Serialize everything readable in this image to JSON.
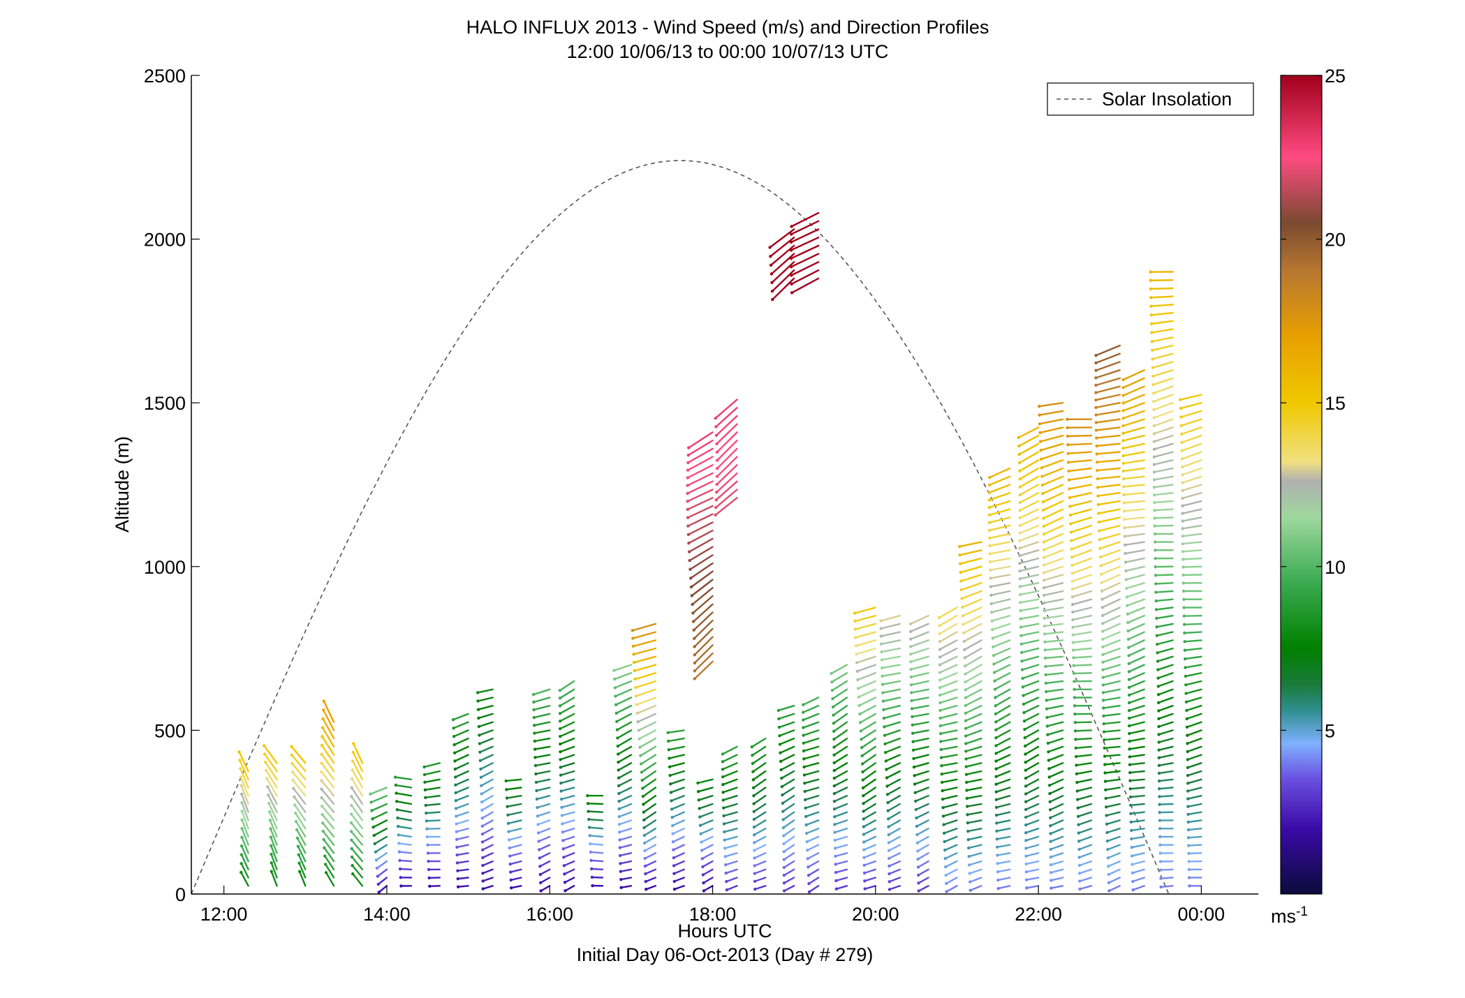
{
  "chart_data": {
    "type": "quiver",
    "title": "HALO INFLUX 2013 - Wind Speed (m/s) and Direction Profiles",
    "subtitle": "12:00 10/06/13 to 00:00 10/07/13  UTC",
    "xlabel": "Hours UTC",
    "xlabel2": "Initial Day 06-Oct-2013 (Day # 279)",
    "ylabel": "Altitude (m)",
    "xlim": [
      11.6,
      24.7
    ],
    "ylim": [
      0,
      2500
    ],
    "x_ticks": [
      12,
      14,
      16,
      18,
      20,
      22,
      24
    ],
    "x_tick_labels": [
      "12:00",
      "14:00",
      "16:00",
      "18:00",
      "20:00",
      "22:00",
      "00:00"
    ],
    "y_ticks": [
      0,
      500,
      1000,
      1500,
      2000,
      2500
    ],
    "y_tick_labels": [
      "0",
      "500",
      "1000",
      "1500",
      "2000",
      "2500"
    ],
    "colorbar": {
      "min": 0,
      "max": 25,
      "ticks": [
        5,
        10,
        15,
        20,
        25
      ],
      "tick_labels": [
        "5",
        "10",
        "15",
        "20",
        "25"
      ],
      "unit": "ms",
      "unit_exp": "-1",
      "stops": [
        {
          "v": 0,
          "c": "#0b0b3b"
        },
        {
          "v": 2,
          "c": "#3b0aa8"
        },
        {
          "v": 3.5,
          "c": "#6a4fe0"
        },
        {
          "v": 4.6,
          "c": "#7fb0ff"
        },
        {
          "v": 5.6,
          "c": "#2f8f8f"
        },
        {
          "v": 6.4,
          "c": "#1a7a3a"
        },
        {
          "v": 7.5,
          "c": "#008000"
        },
        {
          "v": 9.5,
          "c": "#3aaa50"
        },
        {
          "v": 11.5,
          "c": "#9ed89e"
        },
        {
          "v": 12.6,
          "c": "#b0b0b0"
        },
        {
          "v": 13.2,
          "c": "#f0e080"
        },
        {
          "v": 15,
          "c": "#f0c800"
        },
        {
          "v": 17,
          "c": "#e8a000"
        },
        {
          "v": 19,
          "c": "#b87830"
        },
        {
          "v": 20.5,
          "c": "#7a4a30"
        },
        {
          "v": 22.5,
          "c": "#ff4b82"
        },
        {
          "v": 25,
          "c": "#a0001a"
        }
      ]
    },
    "solar_insolation": {
      "name": "Solar Insolation",
      "color": "#555555",
      "style": "dashed",
      "start_hour": 11.6,
      "end_hour": 23.6,
      "peak_hour": 17.6,
      "peak_altitude": 2240
    },
    "profiles": [
      {
        "t": 12.3,
        "h0": 25,
        "h1": 375,
        "dir": 330,
        "v0": 8,
        "v1": 15
      },
      {
        "t": 12.65,
        "h0": 25,
        "h1": 400,
        "dir": 330,
        "v0": 8,
        "v1": 15
      },
      {
        "t": 13.0,
        "h0": 25,
        "h1": 400,
        "dir": 330,
        "v0": 8,
        "v1": 15
      },
      {
        "t": 13.35,
        "h0": 25,
        "h1": 525,
        "dir": 330,
        "v0": 8,
        "v1": 17
      },
      {
        "t": 13.7,
        "h0": 25,
        "h1": 400,
        "dir": 330,
        "v0": 8,
        "v1": 15
      },
      {
        "t": 14.0,
        "h0": 25,
        "h1": 340,
        "dir": 240,
        "v0": 2,
        "v1": 11
      },
      {
        "t": 14.3,
        "h0": 25,
        "h1": 360,
        "dir": 270,
        "v0": 2,
        "v1": 9
      },
      {
        "t": 14.65,
        "h0": 25,
        "h1": 420,
        "dir": 260,
        "v0": 2,
        "v1": 9
      },
      {
        "t": 15.0,
        "h0": 25,
        "h1": 560,
        "dir": 255,
        "v0": 2,
        "v1": 9
      },
      {
        "t": 15.3,
        "h0": 25,
        "h1": 630,
        "dir": 250,
        "v0": 2,
        "v1": 8
      },
      {
        "t": 15.65,
        "h0": 25,
        "h1": 360,
        "dir": 265,
        "v0": 2,
        "v1": 8
      },
      {
        "t": 16.0,
        "h0": 25,
        "h1": 640,
        "dir": 250,
        "v0": 2,
        "v1": 10
      },
      {
        "t": 16.3,
        "h0": 25,
        "h1": 670,
        "dir": 245,
        "v0": 2,
        "v1": 10
      },
      {
        "t": 16.65,
        "h0": 25,
        "h1": 310,
        "dir": 265,
        "v0": 2,
        "v1": 8
      },
      {
        "t": 17.0,
        "h0": 25,
        "h1": 700,
        "dir": 250,
        "v0": 2,
        "v1": 11
      },
      {
        "t": 17.3,
        "h0": 25,
        "h1": 830,
        "dir": 245,
        "v0": 2,
        "v1": 18
      },
      {
        "t": 17.65,
        "h0": 25,
        "h1": 500,
        "dir": 255,
        "v0": 2,
        "v1": 9
      },
      {
        "t": 18.0,
        "h0": 25,
        "h1": 360,
        "dir": 250,
        "v0": 2,
        "v1": 8
      },
      {
        "t": 18.0,
        "h0": 710,
        "h1": 1410,
        "dir": 235,
        "v0": 19,
        "v1": 23
      },
      {
        "t": 18.3,
        "h0": 25,
        "h1": 450,
        "dir": 245,
        "v0": 3,
        "v1": 9
      },
      {
        "t": 18.3,
        "h0": 1210,
        "h1": 1520,
        "dir": 235,
        "v0": 22,
        "v1": 23
      },
      {
        "t": 18.65,
        "h0": 25,
        "h1": 490,
        "dir": 245,
        "v0": 3,
        "v1": 9
      },
      {
        "t": 19.0,
        "h0": 25,
        "h1": 580,
        "dir": 245,
        "v0": 3,
        "v1": 9
      },
      {
        "t": 19.0,
        "h0": 1880,
        "h1": 2050,
        "dir": 235,
        "v0": 25,
        "v1": 25
      },
      {
        "t": 19.3,
        "h0": 25,
        "h1": 620,
        "dir": 245,
        "v0": 3,
        "v1": 10
      },
      {
        "t": 19.3,
        "h0": 1880,
        "h1": 2080,
        "dir": 235,
        "v0": 25,
        "v1": 25
      },
      {
        "t": 19.65,
        "h0": 25,
        "h1": 720,
        "dir": 245,
        "v0": 3,
        "v1": 11
      },
      {
        "t": 20.0,
        "h0": 25,
        "h1": 880,
        "dir": 245,
        "v0": 3,
        "v1": 15
      },
      {
        "t": 20.3,
        "h0": 25,
        "h1": 850,
        "dir": 250,
        "v0": 3,
        "v1": 13
      },
      {
        "t": 20.65,
        "h0": 25,
        "h1": 860,
        "dir": 250,
        "v0": 3,
        "v1": 13
      },
      {
        "t": 21.0,
        "h0": 25,
        "h1": 890,
        "dir": 250,
        "v0": 4,
        "v1": 14
      },
      {
        "t": 21.3,
        "h0": 25,
        "h1": 1080,
        "dir": 250,
        "v0": 4,
        "v1": 16
      },
      {
        "t": 21.65,
        "h0": 25,
        "h1": 1310,
        "dir": 250,
        "v0": 4,
        "v1": 16
      },
      {
        "t": 22.0,
        "h0": 25,
        "h1": 1440,
        "dir": 250,
        "v0": 4,
        "v1": 16
      },
      {
        "t": 22.3,
        "h0": 25,
        "h1": 1520,
        "dir": 255,
        "v0": 4,
        "v1": 18
      },
      {
        "t": 22.65,
        "h0": 25,
        "h1": 1450,
        "dir": 260,
        "v0": 4,
        "v1": 18
      },
      {
        "t": 23.0,
        "h0": 25,
        "h1": 1680,
        "dir": 255,
        "v0": 4,
        "v1": 20
      },
      {
        "t": 23.3,
        "h0": 25,
        "h1": 1610,
        "dir": 255,
        "v0": 4,
        "v1": 17
      },
      {
        "t": 23.65,
        "h0": 25,
        "h1": 1910,
        "dir": 260,
        "v0": 4,
        "v1": 16
      },
      {
        "t": 24.0,
        "h0": 25,
        "h1": 1530,
        "dir": 260,
        "v0": 4,
        "v1": 15
      }
    ]
  }
}
